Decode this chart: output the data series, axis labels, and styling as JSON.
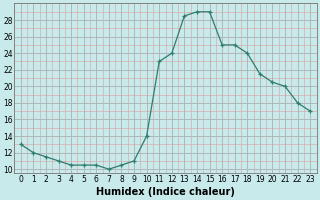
{
  "x": [
    0,
    1,
    2,
    3,
    4,
    5,
    6,
    7,
    8,
    9,
    10,
    11,
    12,
    13,
    14,
    15,
    16,
    17,
    18,
    19,
    20,
    21,
    22,
    23
  ],
  "y": [
    13,
    12,
    11.5,
    11,
    10.5,
    10.5,
    10.5,
    10,
    10.5,
    11,
    14,
    23,
    24,
    28.5,
    29,
    29,
    25,
    25,
    24,
    21.5,
    20.5,
    20,
    18,
    17
  ],
  "line_color": "#2e7d6e",
  "marker": "+",
  "marker_color": "#2e7d6e",
  "bg_color": "#c8eaea",
  "grid_color_major": "#b0b8b8",
  "grid_color_minor": "#daa0a0",
  "xlabel": "Humidex (Indice chaleur)",
  "xlabel_fontsize": 7,
  "xlim": [
    -0.5,
    23.5
  ],
  "ylim": [
    9.5,
    30
  ],
  "yticks": [
    10,
    12,
    14,
    16,
    18,
    20,
    22,
    24,
    26,
    28
  ],
  "xticks": [
    0,
    1,
    2,
    3,
    4,
    5,
    6,
    7,
    8,
    9,
    10,
    11,
    12,
    13,
    14,
    15,
    16,
    17,
    18,
    19,
    20,
    21,
    22,
    23
  ],
  "tick_fontsize": 5.5
}
